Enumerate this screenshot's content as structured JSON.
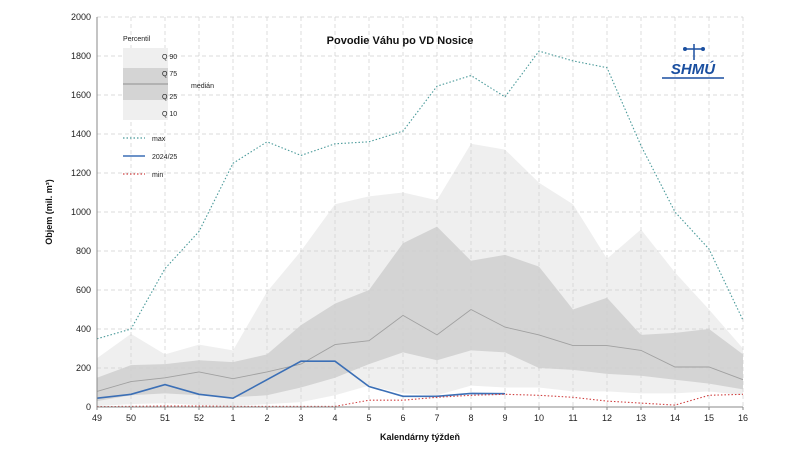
{
  "chart_data": {
    "type": "area",
    "title": "Povodie Váhu po VD Nosice",
    "xlabel": "Kalendárny týždeň",
    "ylabel": "Objem (mil. m³)",
    "ylim": [
      0,
      2000
    ],
    "yticks": [
      0,
      200,
      400,
      600,
      800,
      1000,
      1200,
      1400,
      1600,
      1800,
      2000
    ],
    "categories": [
      "49",
      "50",
      "51",
      "52",
      "1",
      "2",
      "3",
      "4",
      "5",
      "6",
      "7",
      "8",
      "9",
      "10",
      "11",
      "12",
      "13",
      "14",
      "15",
      "16"
    ],
    "grid": true,
    "legend_position": "top-left",
    "logo_text": "SHMÚ",
    "percentile_legend": {
      "title": "Percentil",
      "q90": "Q 90",
      "q75": "Q 75",
      "median": "medián",
      "q25": "Q 25",
      "q10": "Q 10"
    },
    "bands": {
      "q10": [
        5,
        15,
        20,
        10,
        5,
        15,
        25,
        60,
        110,
        70,
        60,
        110,
        100,
        100,
        80,
        80,
        70,
        70,
        80,
        60
      ],
      "q25": [
        30,
        60,
        70,
        60,
        50,
        60,
        100,
        150,
        220,
        280,
        240,
        290,
        280,
        200,
        190,
        170,
        160,
        140,
        120,
        90
      ],
      "median": [
        80,
        130,
        150,
        180,
        145,
        180,
        220,
        320,
        340,
        470,
        370,
        500,
        410,
        370,
        315,
        315,
        290,
        205,
        205,
        140
      ],
      "q75": [
        150,
        215,
        220,
        240,
        230,
        270,
        420,
        530,
        600,
        840,
        925,
        750,
        780,
        720,
        500,
        560,
        370,
        380,
        400,
        270
      ],
      "q90": [
        250,
        375,
        270,
        320,
        290,
        590,
        800,
        1040,
        1080,
        1100,
        1060,
        1350,
        1320,
        1150,
        1040,
        760,
        910,
        690,
        500,
        300
      ]
    },
    "series": [
      {
        "name": "max",
        "color": "#4a9a9a",
        "style": "dotted",
        "values": [
          350,
          400,
          710,
          900,
          1250,
          1360,
          1290,
          1350,
          1360,
          1415,
          1645,
          1700,
          1590,
          1825,
          1775,
          1740,
          1340,
          1000,
          810,
          445
        ]
      },
      {
        "name": "2024/25",
        "color": "#3b6fb6",
        "style": "solid",
        "values": [
          45,
          65,
          115,
          65,
          45,
          140,
          235,
          235,
          105,
          55,
          55,
          70,
          68,
          null,
          null,
          null,
          null,
          null,
          null,
          null
        ]
      },
      {
        "name": "min",
        "color": "#d04040",
        "style": "dotted",
        "values": [
          2,
          3,
          5,
          5,
          3,
          3,
          3,
          3,
          35,
          35,
          50,
          60,
          65,
          60,
          50,
          30,
          20,
          10,
          60,
          65
        ]
      }
    ],
    "colors": {
      "q10_q90": "#efefef",
      "q25_q75": "#d4d4d4",
      "median": "#a0a0a0",
      "grid": "#cfcfcf",
      "axis": "#888888"
    }
  }
}
